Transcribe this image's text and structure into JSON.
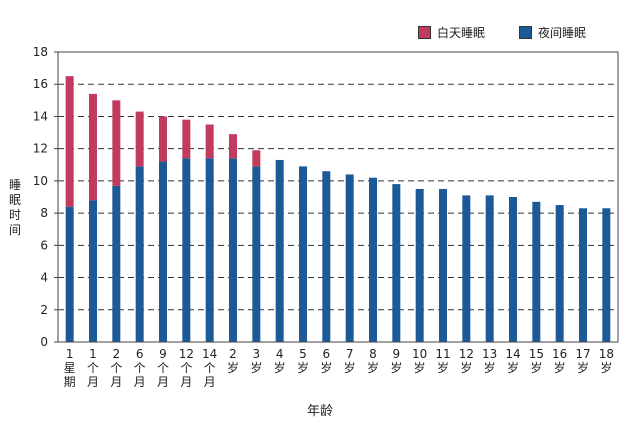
{
  "chart_data": {
    "type": "bar",
    "stacked": true,
    "categories": [
      "1 星期",
      "1 个月",
      "2 个月",
      "6 个月",
      "9 个月",
      "12 个月",
      "14 个月",
      "2 岁",
      "3 岁",
      "4 岁",
      "5 岁",
      "6 岁",
      "7 岁",
      "8 岁",
      "9 岁",
      "10 岁",
      "11 岁",
      "12 岁",
      "13 岁",
      "14 岁",
      "15 岁",
      "16 岁",
      "17 岁",
      "18 岁"
    ],
    "category_lines": [
      [
        "1",
        "星",
        "期"
      ],
      [
        "1",
        "个",
        "月"
      ],
      [
        "2",
        "个",
        "月"
      ],
      [
        "6",
        "个",
        "月"
      ],
      [
        "9",
        "个",
        "月"
      ],
      [
        "12",
        "个",
        "月"
      ],
      [
        "14",
        "个",
        "月"
      ],
      [
        "2",
        "岁"
      ],
      [
        "3",
        "岁"
      ],
      [
        "4",
        "岁"
      ],
      [
        "5",
        "岁"
      ],
      [
        "6",
        "岁"
      ],
      [
        "7",
        "岁"
      ],
      [
        "8",
        "岁"
      ],
      [
        "9",
        "岁"
      ],
      [
        "10",
        "岁"
      ],
      [
        "11",
        "岁"
      ],
      [
        "12",
        "岁"
      ],
      [
        "13",
        "岁"
      ],
      [
        "14",
        "岁"
      ],
      [
        "15",
        "岁"
      ],
      [
        "16",
        "岁"
      ],
      [
        "17",
        "岁"
      ],
      [
        "18",
        "岁"
      ]
    ],
    "series": [
      {
        "name": "夜间睡眠",
        "color": "#1b5a96",
        "values": [
          8.4,
          8.8,
          9.7,
          10.9,
          11.2,
          11.4,
          11.4,
          11.4,
          10.9,
          11.3,
          10.9,
          10.6,
          10.4,
          10.2,
          9.8,
          9.5,
          9.5,
          9.1,
          9.1,
          9.0,
          8.7,
          8.5,
          8.3,
          8.3
        ]
      },
      {
        "name": "白天睡眠",
        "color": "#c23a5d",
        "values": [
          8.1,
          6.6,
          5.3,
          3.4,
          2.8,
          2.4,
          2.1,
          1.5,
          1.0,
          0,
          0,
          0,
          0,
          0,
          0,
          0,
          0,
          0,
          0,
          0,
          0,
          0,
          0,
          0
        ]
      }
    ],
    "xlabel": "年龄",
    "ylabel": "睡眠时间",
    "ylim": [
      0,
      18
    ],
    "yticks": [
      0,
      2,
      4,
      6,
      8,
      10,
      12,
      14,
      16,
      18
    ],
    "grid": "horizontal-dashed",
    "legend_position": "top-right"
  },
  "legend": {
    "day_label": "白天睡眠",
    "night_label": "夜间睡眠"
  }
}
